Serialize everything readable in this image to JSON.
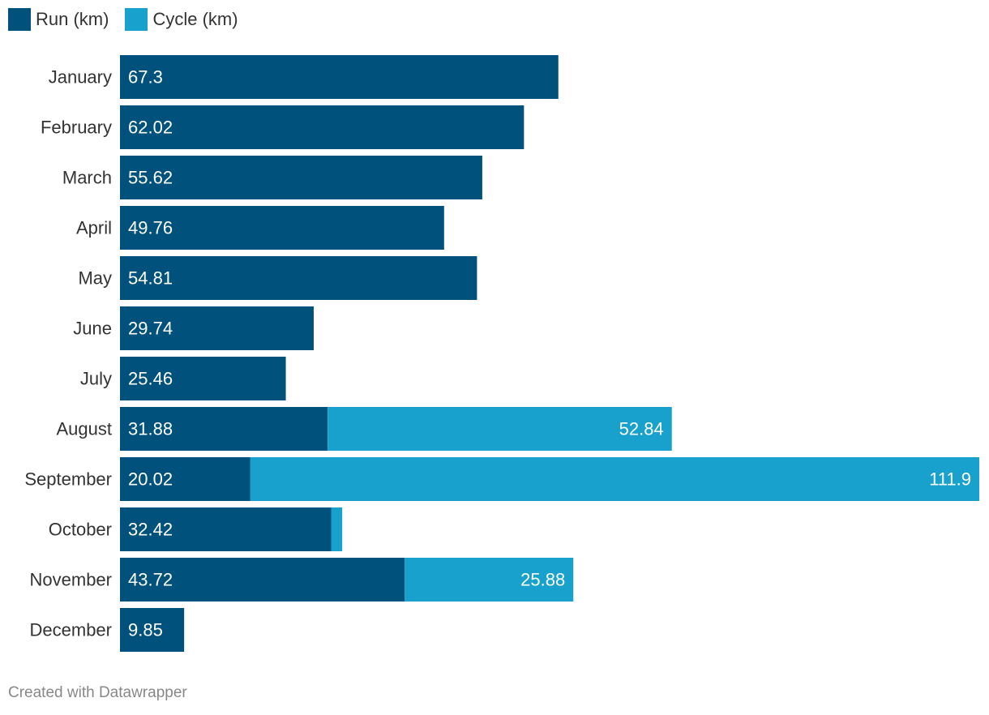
{
  "chart_data": {
    "type": "bar",
    "orientation": "horizontal",
    "stacked": true,
    "categories": [
      "January",
      "February",
      "March",
      "April",
      "May",
      "June",
      "July",
      "August",
      "September",
      "October",
      "November",
      "December"
    ],
    "series": [
      {
        "name": "Run (km)",
        "color": "#00527c",
        "values": [
          67.3,
          62.02,
          55.62,
          49.76,
          54.81,
          29.74,
          25.46,
          31.88,
          20.02,
          32.42,
          43.72,
          9.85
        ],
        "labels": [
          "67.3",
          "62.02",
          "55.62",
          "49.76",
          "54.81",
          "29.74",
          "25.46",
          "31.88",
          "20.02",
          "32.42",
          "43.72",
          "9.85"
        ]
      },
      {
        "name": "Cycle (km)",
        "color": "#18a1cd",
        "values": [
          0,
          0,
          0,
          0,
          0,
          0,
          0,
          52.84,
          111.9,
          1.7,
          25.88,
          0
        ],
        "labels": [
          "",
          "",
          "",
          "",
          "",
          "",
          "",
          "52.84",
          "111.9",
          "",
          "25.88",
          ""
        ]
      }
    ],
    "xlim": [
      0,
      131.92
    ],
    "legend_position": "top-left",
    "grid": false,
    "title": "",
    "xlabel": "",
    "ylabel": ""
  },
  "legend": [
    {
      "label": "Run (km)",
      "color": "#00527c"
    },
    {
      "label": "Cycle (km)",
      "color": "#18a1cd"
    }
  ],
  "footer": "Created with Datawrapper"
}
